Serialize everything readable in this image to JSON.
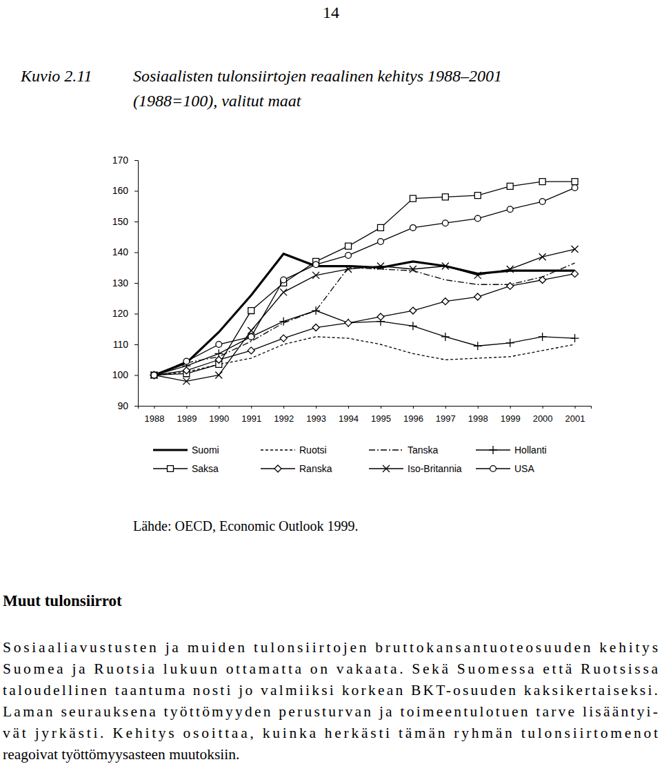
{
  "page_number": "14",
  "caption": {
    "label": "Kuvio 2.11",
    "lines": [
      "Sosiaalisten tulonsiirtojen reaalinen kehitys 1988–2001",
      "(1988=100), valitut maat"
    ]
  },
  "chart_data": {
    "type": "line",
    "categories": [
      "1988",
      "1989",
      "1990",
      "1991",
      "1992",
      "1993",
      "1994",
      "1995",
      "1996",
      "1997",
      "1998",
      "1999",
      "2000",
      "2001"
    ],
    "series": [
      {
        "name": "Suomi",
        "color": "#000000",
        "line_style": "thick",
        "marker": "none",
        "values": [
          100,
          104,
          114,
          126,
          139.5,
          135.5,
          135.5,
          135,
          137,
          135.5,
          133,
          134,
          134,
          134
        ]
      },
      {
        "name": "Ruotsi",
        "color": "#000000",
        "line_style": "dashed",
        "marker": "none",
        "values": [
          100,
          101,
          103.5,
          105.5,
          110,
          112.5,
          112,
          110,
          107,
          105,
          105.5,
          106,
          108,
          110
        ]
      },
      {
        "name": "Tanska",
        "color": "#000000",
        "line_style": "dashdot",
        "marker": "none",
        "values": [
          100,
          104,
          106,
          111,
          117,
          121,
          135,
          134.5,
          134,
          131,
          129.5,
          129.5,
          132,
          136.5
        ]
      },
      {
        "name": "Hollanti",
        "color": "#000000",
        "line_style": "solid",
        "marker": "plus",
        "values": [
          100,
          103,
          107,
          112.5,
          117.5,
          121,
          117,
          117.5,
          116,
          112.5,
          109.5,
          110.5,
          112.5,
          112
        ]
      },
      {
        "name": "Saksa",
        "color": "#000000",
        "line_style": "solid",
        "marker": "square",
        "values": [
          100,
          100.5,
          103.5,
          121,
          130,
          137,
          142,
          148,
          157.5,
          158,
          158.5,
          161.5,
          163,
          163
        ]
      },
      {
        "name": "Ranska",
        "color": "#000000",
        "line_style": "solid",
        "marker": "diamond",
        "values": [
          100,
          101.5,
          105,
          108,
          112,
          115.5,
          117,
          119,
          121,
          124,
          125.5,
          129,
          131,
          133
        ]
      },
      {
        "name": "Iso-Britannia",
        "color": "#000000",
        "line_style": "solid",
        "marker": "x",
        "values": [
          100,
          98,
          100,
          114.5,
          127,
          132.5,
          134.5,
          135.5,
          134.5,
          135.5,
          132.5,
          134.5,
          138.5,
          141
        ]
      },
      {
        "name": "USA",
        "color": "#000000",
        "line_style": "solid",
        "marker": "circle",
        "values": [
          100,
          104.5,
          110,
          112.5,
          131,
          136,
          139,
          143.5,
          148,
          149.5,
          151,
          154,
          156.5,
          161
        ]
      }
    ],
    "ylim": [
      90,
      170
    ],
    "yticks": [
      90,
      100,
      110,
      120,
      130,
      140,
      150,
      160,
      170
    ],
    "grid": false,
    "legend": "bottom"
  },
  "source": "Lähde: OECD, Economic Outlook 1999.",
  "section": {
    "heading": "Muut tulonsiirrot",
    "lines": [
      "Sosiaaliavustusten ja muiden tulonsiirtojen bruttokansantuoteosuuden kehitys",
      "Suomea ja Ruotsia lukuun ottamatta on vakaata. Sekä Suomessa että Ruotsissa",
      "taloudellinen taantuma nosti jo valmiiksi korkean BKT-osuuden kaksikertaiseksi.",
      "Laman seurauksena työttömyyden perusturvan ja toimeentulotuen tarve lisääntyi-",
      "vät jyrkästi. Kehitys osoittaa, kuinka herkästi tämän ryhmän tulonsiirtomenot",
      "reagoivat työttömyysasteen muutoksiin."
    ]
  }
}
